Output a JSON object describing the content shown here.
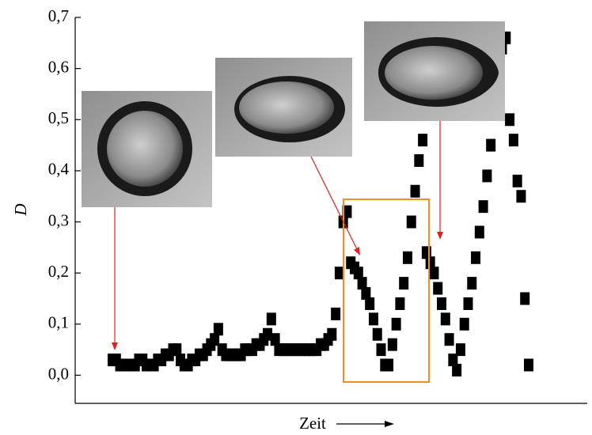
{
  "chart_data": {
    "type": "scatter",
    "x_label": "Zeit",
    "y_label": "D",
    "ylim": [
      -0.055,
      0.7
    ],
    "yticks": [
      {
        "value": 0,
        "label": "0,0"
      },
      {
        "value": 0.1,
        "label": "0,1"
      },
      {
        "value": 0.2,
        "label": "0,2"
      },
      {
        "value": 0.3,
        "label": "0,3"
      },
      {
        "value": 0.4,
        "label": "0,4"
      },
      {
        "value": 0.5,
        "label": "0,5"
      },
      {
        "value": 0.6,
        "label": "0,6"
      },
      {
        "value": 0.7,
        "label": "0,7"
      }
    ],
    "color": "#000000",
    "values": [
      0.03,
      0.03,
      0.02,
      0.02,
      0.02,
      0.02,
      0.02,
      0.03,
      0.03,
      0.02,
      0.02,
      0.02,
      0.03,
      0.03,
      0.04,
      0.04,
      0.05,
      0.05,
      0.03,
      0.02,
      0.02,
      0.03,
      0.03,
      0.04,
      0.04,
      0.05,
      0.06,
      0.07,
      0.09,
      0.05,
      0.04,
      0.04,
      0.04,
      0.04,
      0.04,
      0.05,
      0.05,
      0.05,
      0.06,
      0.06,
      0.07,
      0.08,
      0.11,
      0.07,
      0.05,
      0.05,
      0.05,
      0.05,
      0.05,
      0.05,
      0.05,
      0.05,
      0.05,
      0.05,
      0.05,
      0.06,
      0.06,
      0.07,
      0.08,
      0.12,
      0.2,
      0.3,
      0.32,
      0.22,
      0.21,
      0.2,
      0.18,
      0.16,
      0.14,
      0.11,
      0.08,
      0.05,
      0.02,
      0.02,
      0.06,
      0.1,
      0.14,
      0.18,
      0.23,
      0.3,
      0.36,
      0.42,
      0.46,
      0.24,
      0.22,
      0.2,
      0.17,
      0.14,
      0.11,
      0.07,
      0.03,
      0.01,
      0.05,
      0.1,
      0.14,
      0.18,
      0.23,
      0.28,
      0.33,
      0.39,
      0.45,
      0.51,
      0.58,
      0.64,
      0.66,
      0.5,
      0.46,
      0.38,
      0.35,
      0.15,
      0.02
    ]
  }
}
